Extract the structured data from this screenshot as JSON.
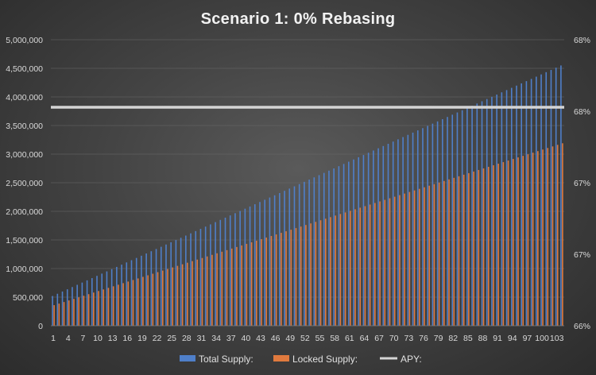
{
  "chart_data": {
    "type": "bar",
    "title": "Scenario 1: 0% Rebasing",
    "x_start": 1,
    "x_end": 104,
    "x_tick_labels": [
      "1",
      "4",
      "7",
      "10",
      "13",
      "16",
      "19",
      "22",
      "25",
      "28",
      "31",
      "34",
      "37",
      "40",
      "43",
      "46",
      "49",
      "52",
      "55",
      "58",
      "61",
      "64",
      "67",
      "70",
      "73",
      "76",
      "79",
      "82",
      "85",
      "88",
      "91",
      "94",
      "97",
      "100",
      "103"
    ],
    "y_left_tick_labels": [
      "0",
      "500,000",
      "1,000,000",
      "1,500,000",
      "2,000,000",
      "2,500,000",
      "3,000,000",
      "3,500,000",
      "4,000,000",
      "4,500,000",
      "5,000,000"
    ],
    "ylim_left": [
      0,
      5000000
    ],
    "y_right_tick_labels": [
      "66%",
      "67%",
      "67%",
      "68%",
      "68%"
    ],
    "series": [
      {
        "name": "Total Supply:",
        "type": "bar",
        "color": "#4f7fc9",
        "start_value": 520000,
        "end_value": 4550000
      },
      {
        "name": "Locked Supply:",
        "type": "bar",
        "color": "#e07a3e",
        "start_value": 360000,
        "end_value": 3190000
      },
      {
        "name": "APY:",
        "type": "line",
        "axis": "right",
        "color": "#d4d4d4",
        "value_on_left_scale": 3820000
      }
    ],
    "legend_position": "bottom"
  }
}
